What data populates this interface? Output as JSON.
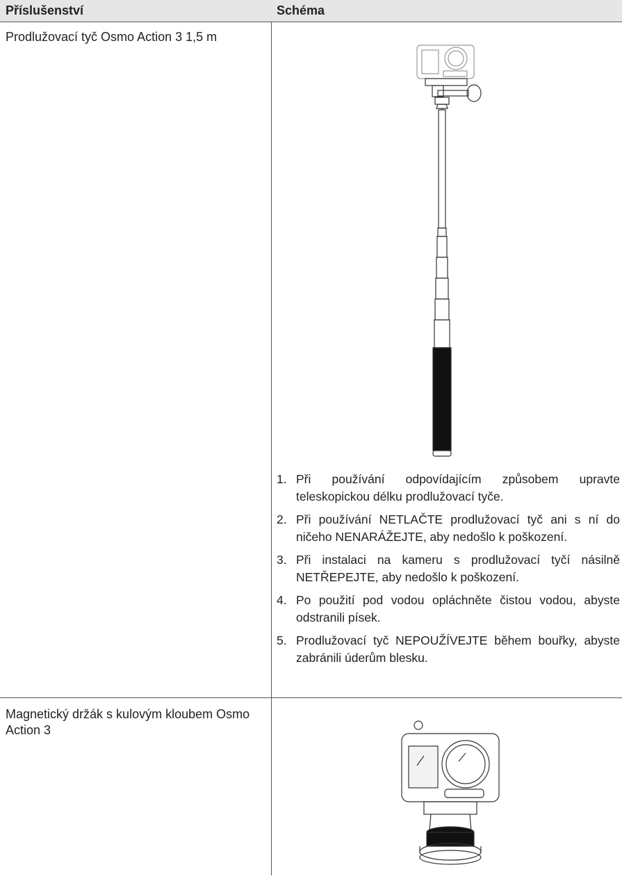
{
  "table": {
    "headers": [
      "Příslušenství",
      "Schéma"
    ],
    "rows": [
      {
        "accessory": "Prodlužovací tyč Osmo Action 3 1,5 m",
        "notes": [
          {
            "number": "1.",
            "text": "Při používání odpovídajícím způsobem upravte teleskopickou délku prodlužovací tyče."
          },
          {
            "number": "2.",
            "text": "Při používání NETLAČTE prodlužovací tyč ani s ní do ničeho NENARÁŽEJTE, aby nedošlo k poškození."
          },
          {
            "number": "3.",
            "text": "Při instalaci na kameru s prodlužovací tyčí násilně NETŘEPEJTE, aby nedošlo k poškození."
          },
          {
            "number": "4.",
            "text": "Po použití pod vodou opláchněte čistou vodou, abyste odstranili písek."
          },
          {
            "number": "5.",
            "text": "Prodlužovací tyč NEPOUŽÍVEJTE během bouřky, abyste zabránili úderům blesku."
          }
        ]
      },
      {
        "accessory": "Magnetický držák s kulovým kloubem Osmo Action 3"
      }
    ]
  }
}
